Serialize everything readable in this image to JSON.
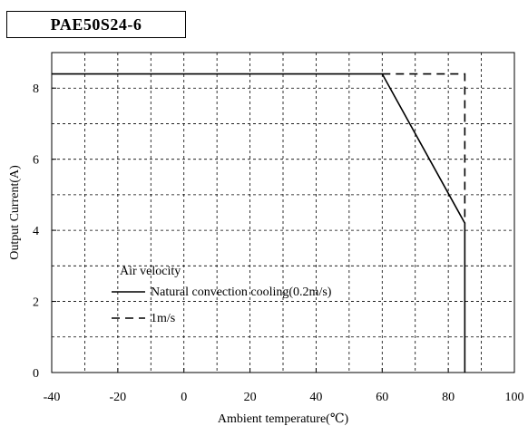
{
  "chart_data": {
    "type": "line",
    "title": "PAE50S24-6",
    "xlabel": "Ambient temperature(℃)",
    "ylabel": "Output Current(A)",
    "xlim": [
      -40,
      100
    ],
    "ylim": [
      0,
      9
    ],
    "xticks": [
      -40,
      -20,
      0,
      20,
      40,
      60,
      80,
      100
    ],
    "yticks": [
      0,
      2,
      4,
      6,
      8
    ],
    "grid": true,
    "legend": {
      "title": "Air velocity",
      "placement": "bottom-left"
    },
    "series": [
      {
        "name": "Natural convection cooling(0.2m/s)",
        "style": "solid",
        "color": "#000000",
        "x": [
          -40,
          60,
          85,
          85
        ],
        "y": [
          8.4,
          8.4,
          4.2,
          0
        ]
      },
      {
        "name": "1m/s",
        "style": "dashed",
        "color": "#000000",
        "x": [
          60,
          85,
          85
        ],
        "y": [
          8.4,
          8.4,
          4.2
        ]
      }
    ]
  }
}
